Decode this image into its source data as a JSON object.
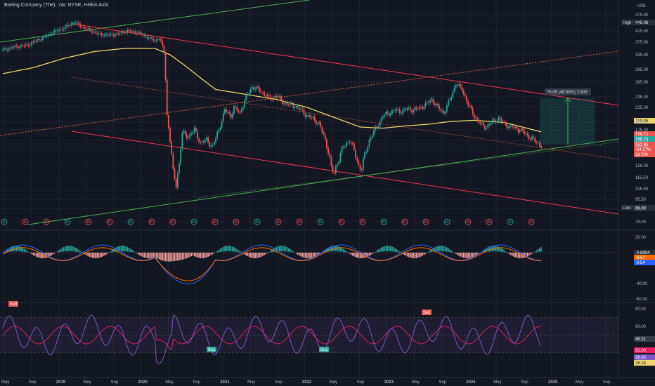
{
  "header": {
    "symbol_title": "Boeing Company (The), 1W, NYSE, Heikin Ashi",
    "currency": "USD"
  },
  "colors": {
    "background": "#131722",
    "bull": "#26a69a",
    "bear": "#ef5350",
    "channel": "#f23645",
    "support": "#4caf50",
    "ma": "#f0d56b",
    "rsi": "#7e57c2",
    "rsi_ma": "#e91e63",
    "macd": "#2962ff",
    "signal": "#ff6d00"
  },
  "chart_data": [
    {
      "type": "candlestick",
      "style": "Heikin Ashi",
      "interval": "1W",
      "price_axis_ticks": [
        475.0,
        445.0,
        415.0,
        375.0,
        335.0,
        295.0,
        265.0,
        235.0,
        215.0,
        189.06,
        175.0,
        158.73,
        150.0,
        128.0,
        115.5,
        105.5,
        95.5,
        88.5,
        79.0
      ],
      "price_tags": [
        {
          "label": "High",
          "value": "446.01"
        },
        {
          "label": "",
          "value": "189.06"
        },
        {
          "label": "",
          "value": "166.72"
        },
        {
          "label": "",
          "value": "158.73"
        },
        {
          "label": "",
          "value": "152.85"
        },
        {
          "label": "",
          "value": "-64.27%"
        },
        {
          "label": "",
          "value": "2d 20h"
        },
        {
          "label": "Low",
          "value": "89.00"
        }
      ],
      "annotation": "76.05 (49.59%) 7,605",
      "x_ticks": [
        "May",
        "Sep",
        "2019",
        "May",
        "Sep",
        "2020",
        "May",
        "Sep",
        "2021",
        "May",
        "Sep",
        "2022",
        "May",
        "Sep",
        "2023",
        "May",
        "Sep",
        "2024",
        "May",
        "Sep",
        "2025",
        "May",
        "Sep"
      ],
      "price_path": [
        [
          0,
          350
        ],
        [
          8,
          360
        ],
        [
          16,
          365
        ],
        [
          22,
          380
        ],
        [
          28,
          395
        ],
        [
          33,
          410
        ],
        [
          40,
          425
        ],
        [
          47,
          446
        ],
        [
          52,
          430
        ],
        [
          58,
          415
        ],
        [
          64,
          402
        ],
        [
          70,
          400
        ],
        [
          76,
          405
        ],
        [
          82,
          415
        ],
        [
          88,
          410
        ],
        [
          94,
          395
        ],
        [
          100,
          380
        ],
        [
          103,
          390
        ],
        [
          106,
          345
        ],
        [
          108,
          200
        ],
        [
          110,
          160
        ],
        [
          112,
          120
        ],
        [
          114,
          110
        ],
        [
          116,
          130
        ],
        [
          118,
          170
        ],
        [
          122,
          165
        ],
        [
          126,
          175
        ],
        [
          130,
          155
        ],
        [
          134,
          160
        ],
        [
          138,
          150
        ],
        [
          142,
          175
        ],
        [
          146,
          210
        ],
        [
          150,
          200
        ],
        [
          152,
          215
        ],
        [
          156,
          205
        ],
        [
          160,
          235
        ],
        [
          164,
          255
        ],
        [
          168,
          250
        ],
        [
          172,
          240
        ],
        [
          176,
          232
        ],
        [
          180,
          238
        ],
        [
          184,
          225
        ],
        [
          188,
          220
        ],
        [
          192,
          218
        ],
        [
          196,
          210
        ],
        [
          200,
          200
        ],
        [
          204,
          195
        ],
        [
          208,
          185
        ],
        [
          212,
          160
        ],
        [
          214,
          145
        ],
        [
          216,
          125
        ],
        [
          218,
          120
        ],
        [
          220,
          132
        ],
        [
          224,
          150
        ],
        [
          228,
          160
        ],
        [
          232,
          140
        ],
        [
          234,
          128
        ],
        [
          236,
          125
        ],
        [
          238,
          140
        ],
        [
          242,
          165
        ],
        [
          246,
          180
        ],
        [
          250,
          200
        ],
        [
          254,
          205
        ],
        [
          258,
          210
        ],
        [
          262,
          208
        ],
        [
          266,
          212
        ],
        [
          270,
          210
        ],
        [
          274,
          214
        ],
        [
          278,
          220
        ],
        [
          282,
          230
        ],
        [
          286,
          215
        ],
        [
          290,
          205
        ],
        [
          294,
          230
        ],
        [
          298,
          262
        ],
        [
          302,
          250
        ],
        [
          306,
          220
        ],
        [
          310,
          200
        ],
        [
          314,
          185
        ],
        [
          318,
          180
        ],
        [
          322,
          190
        ],
        [
          326,
          195
        ],
        [
          330,
          185
        ],
        [
          334,
          180
        ],
        [
          338,
          178
        ],
        [
          342,
          172
        ],
        [
          346,
          165
        ],
        [
          350,
          158
        ],
        [
          354,
          152
        ]
      ],
      "ma_path": [
        [
          0,
          285
        ],
        [
          20,
          300
        ],
        [
          40,
          325
        ],
        [
          60,
          345
        ],
        [
          80,
          355
        ],
        [
          100,
          355
        ],
        [
          110,
          335
        ],
        [
          120,
          305
        ],
        [
          130,
          275
        ],
        [
          140,
          250
        ],
        [
          160,
          240
        ],
        [
          180,
          230
        ],
        [
          200,
          215
        ],
        [
          220,
          195
        ],
        [
          235,
          180
        ],
        [
          250,
          178
        ],
        [
          265,
          182
        ],
        [
          280,
          185
        ],
        [
          295,
          190
        ],
        [
          310,
          192
        ],
        [
          330,
          188
        ],
        [
          354,
          172
        ]
      ],
      "events_row": [
        "E",
        "E",
        "E",
        "E",
        "E",
        "E",
        "E",
        "E",
        "E",
        "E",
        "E",
        "E",
        "E",
        "E",
        "E",
        "E",
        "E",
        "E",
        "E",
        "E",
        "E",
        "E",
        "E",
        "E",
        "E",
        "E"
      ]
    },
    {
      "type": "macd",
      "y_ticks": [
        20.0,
        -40.0,
        -60.0
      ],
      "value_tags": [
        "-0.8904",
        "-8.67",
        "-9.54"
      ]
    },
    {
      "type": "rsi",
      "y_ticks": [
        80.0,
        60.0,
        45.21,
        31.0,
        28.63,
        28.15
      ],
      "value_tags": [
        "45.21",
        "31.00",
        "28.63",
        "28.15"
      ],
      "signals": [
        {
          "label": "Sell"
        },
        {
          "label": "Buy"
        },
        {
          "label": "Buy"
        },
        {
          "label": "Sell"
        }
      ]
    }
  ]
}
